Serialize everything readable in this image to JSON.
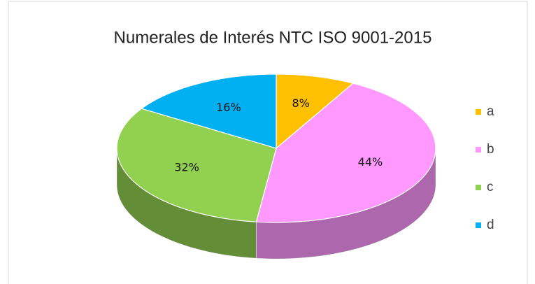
{
  "chart_data": {
    "type": "pie3d",
    "title": "Numerales de Interés NTC ISO 9001-2015",
    "categories": [
      "a",
      "b",
      "c",
      "d"
    ],
    "values": [
      8,
      44,
      32,
      16
    ],
    "value_labels": [
      "8%",
      "44%",
      "32%",
      "16%"
    ],
    "colors": [
      "#ffc000",
      "#ff99ff",
      "#92d050",
      "#00b0f0"
    ],
    "legend": "right"
  }
}
